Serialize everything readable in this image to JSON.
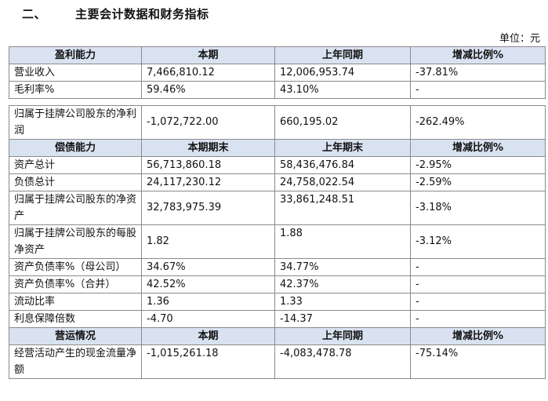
{
  "heading": {
    "number": "二、",
    "title": "主要会计数据和财务指标"
  },
  "unit": "单位：元",
  "profitability": {
    "headers": [
      "盈利能力",
      "本期",
      "上年同期",
      "增减比例%"
    ],
    "rows": [
      [
        "营业收入",
        "7,466,810.12",
        "12,006,953.74",
        "-37.81%"
      ],
      [
        "毛利率%",
        "59.46%",
        "43.10%",
        "-"
      ],
      [
        "归属于挂牌公司股东的净利润",
        "-1,072,722.00",
        "660,195.02",
        "-262.49%"
      ]
    ]
  },
  "solvency": {
    "headers": [
      "偿债能力",
      "本期期末",
      "上年期末",
      "增减比例%"
    ],
    "rows": [
      [
        "资产总计",
        "56,713,860.18",
        "58,436,476.84",
        "-2.95%"
      ],
      [
        "负债总计",
        "24,117,230.12",
        "24,758,022.54",
        "-2.59%"
      ],
      [
        "归属于挂牌公司股东的净资产",
        "32,783,975.39",
        "33,861,248.51",
        "-3.18%"
      ],
      [
        "归属于挂牌公司股东的每股净资产",
        "1.82",
        "1.88",
        "-3.12%"
      ],
      [
        "资产负债率%（母公司）",
        "34.67%",
        "34.77%",
        "-"
      ],
      [
        "资产负债率%（合并）",
        "42.52%",
        "42.37%",
        "-"
      ],
      [
        "流动比率",
        "1.36",
        "1.33",
        "-"
      ],
      [
        "利息保障倍数",
        "-4.70",
        "-14.37",
        "-"
      ]
    ]
  },
  "operations": {
    "headers": [
      "营运情况",
      "本期",
      "上年同期",
      "增减比例%"
    ],
    "rows": [
      [
        "经营活动产生的现金流量净额",
        "-1,015,261.18",
        "-4,083,478.78",
        "-75.14%"
      ]
    ]
  }
}
